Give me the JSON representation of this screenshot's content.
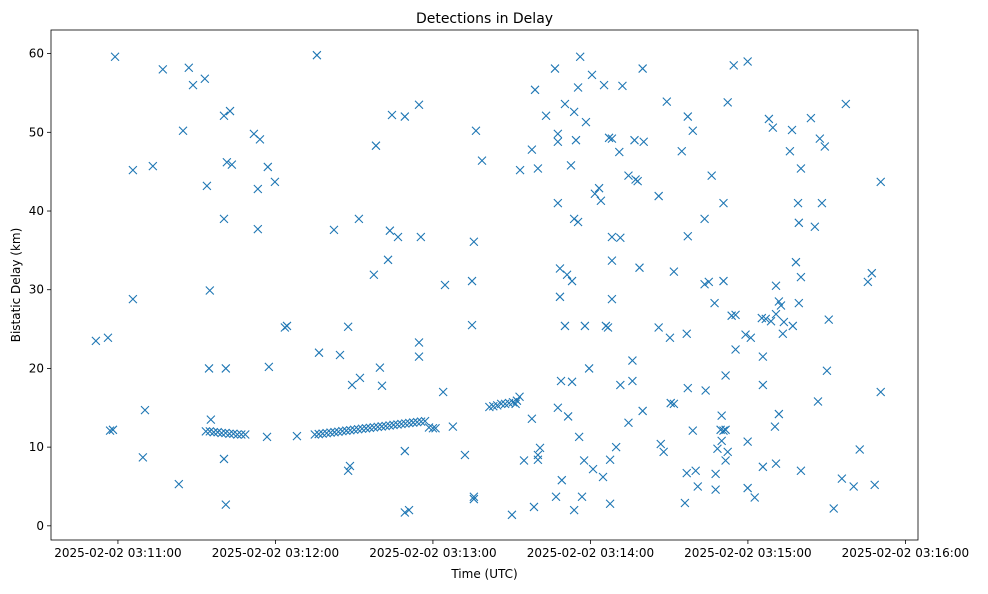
{
  "chart_data": {
    "type": "scatter",
    "title": "Detections in Delay",
    "xlabel": "Time (UTC)",
    "ylabel": "Bistatic Delay (km)",
    "x_unit": "seconds after 2025-02-02 03:11:00",
    "xlim": [
      -25.5,
      304.8
    ],
    "ylim": [
      -1.8,
      63.0
    ],
    "xticks": [
      {
        "value": 0,
        "label": "2025-02-02 03:11:00"
      },
      {
        "value": 60,
        "label": "2025-02-02 03:12:00"
      },
      {
        "value": 120,
        "label": "2025-02-02 03:13:00"
      },
      {
        "value": 180,
        "label": "2025-02-02 03:14:00"
      },
      {
        "value": 240,
        "label": "2025-02-02 03:15:00"
      },
      {
        "value": 300,
        "label": "2025-02-02 03:16:00"
      }
    ],
    "yticks": [
      {
        "value": 0,
        "label": "0"
      },
      {
        "value": 10,
        "label": "10"
      },
      {
        "value": 20,
        "label": "20"
      },
      {
        "value": 30,
        "label": "30"
      },
      {
        "value": 40,
        "label": "40"
      },
      {
        "value": 50,
        "label": "50"
      },
      {
        "value": 60,
        "label": "60"
      }
    ],
    "grid": false,
    "marker": "x",
    "color": "#1f77b4",
    "points": [
      [
        -8.4,
        23.5
      ],
      [
        -3.8,
        23.9
      ],
      [
        -3.0,
        12.1
      ],
      [
        -1.9,
        12.2
      ],
      [
        -1.1,
        59.6
      ],
      [
        5.7,
        45.2
      ],
      [
        5.7,
        28.8
      ],
      [
        9.5,
        8.7
      ],
      [
        10.3,
        14.7
      ],
      [
        13.3,
        45.7
      ],
      [
        17.1,
        58.0
      ],
      [
        23.2,
        5.3
      ],
      [
        24.8,
        50.2
      ],
      [
        27.0,
        58.2
      ],
      [
        28.6,
        56.0
      ],
      [
        33.1,
        56.8
      ],
      [
        33.9,
        43.2
      ],
      [
        35.0,
        29.9
      ],
      [
        34.7,
        20.0
      ],
      [
        35.4,
        13.5
      ],
      [
        33.5,
        12.0
      ],
      [
        35,
        12.0
      ],
      [
        36.5,
        11.9
      ],
      [
        38,
        11.9
      ],
      [
        39.5,
        11.8
      ],
      [
        41,
        11.8
      ],
      [
        42.5,
        11.7
      ],
      [
        44,
        11.7
      ],
      [
        45.5,
        11.6
      ],
      [
        47,
        11.6
      ],
      [
        48.5,
        11.6
      ],
      [
        40.4,
        52.1
      ],
      [
        42.7,
        52.7
      ],
      [
        40.4,
        39.0
      ],
      [
        41.5,
        46.2
      ],
      [
        43.4,
        45.9
      ],
      [
        41.1,
        20.0
      ],
      [
        40.4,
        8.5
      ],
      [
        41.1,
        2.7
      ],
      [
        51.8,
        49.8
      ],
      [
        54.1,
        49.1
      ],
      [
        53.3,
        42.8
      ],
      [
        53.3,
        37.7
      ],
      [
        57.1,
        45.6
      ],
      [
        59.8,
        43.7
      ],
      [
        57.5,
        20.2
      ],
      [
        56.8,
        11.3
      ],
      [
        63.6,
        25.2
      ],
      [
        64.4,
        25.4
      ],
      [
        68.2,
        11.4
      ],
      [
        75.8,
        59.8
      ],
      [
        76.6,
        22.0
      ],
      [
        82.3,
        37.6
      ],
      [
        84.6,
        21.7
      ],
      [
        87.7,
        25.3
      ],
      [
        87.7,
        7.0
      ],
      [
        88.4,
        7.6
      ],
      [
        89.2,
        17.9
      ],
      [
        91.8,
        39.0
      ],
      [
        92.2,
        18.8
      ],
      [
        97.5,
        31.9
      ],
      [
        98.3,
        48.3
      ],
      [
        99.8,
        20.1
      ],
      [
        100.6,
        17.8
      ],
      [
        102.9,
        33.8
      ],
      [
        103.6,
        37.5
      ],
      [
        104.4,
        52.2
      ],
      [
        106.7,
        36.7
      ],
      [
        109.3,
        52.0
      ],
      [
        109.3,
        9.5
      ],
      [
        109.3,
        1.7
      ],
      [
        110.9,
        2.0
      ],
      [
        114.7,
        53.5
      ],
      [
        115.4,
        36.7
      ],
      [
        114.7,
        23.3
      ],
      [
        114.7,
        21.5
      ],
      [
        75,
        11.6
      ],
      [
        76.5,
        11.66
      ],
      [
        78,
        11.72
      ],
      [
        79.5,
        11.78
      ],
      [
        81,
        11.84
      ],
      [
        82.5,
        11.9
      ],
      [
        84,
        11.96
      ],
      [
        85.5,
        12.03
      ],
      [
        87,
        12.09
      ],
      [
        88.5,
        12.15
      ],
      [
        90,
        12.21
      ],
      [
        91.5,
        12.27
      ],
      [
        93,
        12.33
      ],
      [
        94.5,
        12.39
      ],
      [
        96,
        12.45
      ],
      [
        97.5,
        12.51
      ],
      [
        99,
        12.57
      ],
      [
        100.5,
        12.63
      ],
      [
        102,
        12.69
      ],
      [
        103.5,
        12.75
      ],
      [
        105,
        12.82
      ],
      [
        106.5,
        12.88
      ],
      [
        108,
        12.94
      ],
      [
        109.5,
        13.0
      ],
      [
        111,
        13.06
      ],
      [
        112.5,
        13.12
      ],
      [
        114,
        13.18
      ],
      [
        115.5,
        13.24
      ],
      [
        117,
        13.3
      ],
      [
        118.5,
        12.5
      ],
      [
        120,
        12.4
      ],
      [
        121,
        12.4
      ],
      [
        124.6,
        30.6
      ],
      [
        123.9,
        17.0
      ],
      [
        127.6,
        12.6
      ],
      [
        132.2,
        9.0
      ],
      [
        134.9,
        31.1
      ],
      [
        135.6,
        36.1
      ],
      [
        136.4,
        50.2
      ],
      [
        138.7,
        46.4
      ],
      [
        134.9,
        25.5
      ],
      [
        135.6,
        3.7
      ],
      [
        135.6,
        3.4
      ],
      [
        141.5,
        15.1
      ],
      [
        143,
        15.2
      ],
      [
        144.5,
        15.3
      ],
      [
        146,
        15.5
      ],
      [
        147.5,
        15.5
      ],
      [
        149,
        15.6
      ],
      [
        150.5,
        15.7
      ],
      [
        151.5,
        15.5
      ],
      [
        152,
        15.9
      ],
      [
        153,
        16.4
      ],
      [
        150.1,
        1.4
      ],
      [
        153.2,
        45.2
      ],
      [
        154.7,
        8.3
      ],
      [
        157.7,
        13.6
      ],
      [
        158.5,
        2.4
      ],
      [
        160.0,
        8.4
      ],
      [
        160.8,
        9.9
      ],
      [
        160.0,
        9.0
      ],
      [
        158.9,
        55.4
      ],
      [
        157.7,
        47.8
      ],
      [
        160.0,
        45.4
      ],
      [
        163.1,
        52.1
      ],
      [
        166.5,
        58.1
      ],
      [
        167.6,
        49.8
      ],
      [
        167.6,
        48.8
      ],
      [
        167.6,
        41.0
      ],
      [
        168.4,
        32.7
      ],
      [
        168.4,
        29.1
      ],
      [
        170.3,
        53.6
      ],
      [
        171.1,
        31.9
      ],
      [
        172.6,
        45.8
      ],
      [
        173.0,
        31.1
      ],
      [
        170.3,
        25.4
      ],
      [
        167.6,
        15.0
      ],
      [
        168.8,
        18.4
      ],
      [
        171.5,
        13.9
      ],
      [
        173.0,
        18.3
      ],
      [
        166.9,
        3.7
      ],
      [
        169.1,
        5.8
      ],
      [
        173.8,
        2.0
      ],
      [
        173.8,
        39.0
      ],
      [
        175.3,
        38.6
      ],
      [
        173.8,
        52.6
      ],
      [
        174.5,
        49.0
      ],
      [
        175.3,
        55.7
      ],
      [
        176.1,
        59.6
      ],
      [
        175.7,
        11.3
      ],
      [
        177.6,
        8.3
      ],
      [
        176.8,
        3.7
      ],
      [
        178.3,
        51.3
      ],
      [
        177.9,
        25.4
      ],
      [
        179.5,
        20.0
      ],
      [
        180.6,
        57.3
      ],
      [
        181.7,
        42.2
      ],
      [
        183.3,
        42.9
      ],
      [
        184.0,
        41.3
      ],
      [
        181.0,
        7.2
      ],
      [
        184.8,
        6.2
      ],
      [
        185.2,
        56.0
      ],
      [
        185.9,
        25.4
      ],
      [
        186.7,
        25.2
      ],
      [
        187.1,
        49.3
      ],
      [
        188.2,
        49.2
      ],
      [
        188.2,
        36.7
      ],
      [
        188.2,
        33.7
      ],
      [
        188.2,
        28.8
      ],
      [
        187.5,
        8.4
      ],
      [
        187.5,
        2.8
      ],
      [
        189.8,
        10.0
      ],
      [
        191.0,
        47.5
      ],
      [
        191.4,
        36.6
      ],
      [
        192.2,
        55.9
      ],
      [
        191.4,
        17.9
      ],
      [
        194.5,
        44.5
      ],
      [
        196.0,
        18.4
      ],
      [
        196.0,
        21.0
      ],
      [
        194.5,
        13.1
      ],
      [
        196.8,
        49.0
      ],
      [
        197.2,
        44.0
      ],
      [
        198.0,
        43.8
      ],
      [
        198.7,
        32.8
      ],
      [
        199.9,
        58.1
      ],
      [
        200.3,
        48.8
      ],
      [
        199.9,
        14.6
      ],
      [
        206.0,
        41.9
      ],
      [
        206.0,
        25.2
      ],
      [
        206.8,
        10.4
      ],
      [
        207.9,
        9.4
      ],
      [
        209.1,
        53.9
      ],
      [
        210.3,
        23.9
      ],
      [
        210.6,
        15.6
      ],
      [
        211.8,
        15.5
      ],
      [
        211.8,
        32.3
      ],
      [
        214.8,
        47.6
      ],
      [
        216.0,
        2.9
      ],
      [
        216.7,
        6.7
      ],
      [
        216.7,
        24.4
      ],
      [
        217.1,
        52.0
      ],
      [
        217.1,
        36.8
      ],
      [
        217.1,
        17.5
      ],
      [
        219.0,
        12.1
      ],
      [
        219.0,
        50.2
      ],
      [
        220.1,
        7.0
      ],
      [
        220.9,
        5.0
      ],
      [
        223.5,
        39.0
      ],
      [
        223.9,
        17.2
      ],
      [
        223.5,
        30.7
      ],
      [
        225.1,
        31.0
      ],
      [
        226.2,
        44.5
      ],
      [
        227.3,
        28.3
      ],
      [
        227.7,
        6.6
      ],
      [
        227.7,
        4.6
      ],
      [
        228.4,
        9.8
      ],
      [
        230.0,
        14.0
      ],
      [
        229.6,
        12.2
      ],
      [
        230.7,
        12.1
      ],
      [
        231.5,
        12.2
      ],
      [
        230.7,
        31.1
      ],
      [
        230.7,
        41.0
      ],
      [
        230.0,
        10.8
      ],
      [
        231.5,
        8.3
      ],
      [
        231.5,
        19.1
      ],
      [
        232.3,
        53.8
      ],
      [
        232.3,
        9.4
      ],
      [
        233.8,
        26.7
      ],
      [
        234.6,
        58.5
      ],
      [
        235.3,
        26.8
      ],
      [
        235.3,
        22.4
      ],
      [
        239.1,
        24.3
      ],
      [
        239.9,
        59.0
      ],
      [
        239.9,
        10.7
      ],
      [
        239.9,
        4.8
      ],
      [
        241.1,
        23.9
      ],
      [
        242.6,
        3.6
      ],
      [
        245.3,
        26.4
      ],
      [
        245.7,
        21.5
      ],
      [
        245.7,
        17.9
      ],
      [
        245.7,
        7.5
      ],
      [
        246.8,
        26.3
      ],
      [
        248.0,
        51.7
      ],
      [
        248.8,
        26.0
      ],
      [
        249.5,
        50.6
      ],
      [
        250.3,
        12.6
      ],
      [
        250.7,
        26.9
      ],
      [
        250.7,
        30.5
      ],
      [
        250.7,
        7.9
      ],
      [
        251.8,
        14.2
      ],
      [
        251.8,
        28.5
      ],
      [
        252.6,
        28.0
      ],
      [
        253.3,
        24.4
      ],
      [
        253.7,
        25.9
      ],
      [
        256.0,
        47.6
      ],
      [
        256.8,
        50.3
      ],
      [
        257.1,
        25.4
      ],
      [
        258.3,
        33.5
      ],
      [
        259.1,
        41.0
      ],
      [
        259.4,
        38.5
      ],
      [
        259.4,
        28.3
      ],
      [
        260.2,
        31.6
      ],
      [
        260.2,
        45.4
      ],
      [
        260.2,
        7.0
      ],
      [
        264.0,
        51.8
      ],
      [
        265.5,
        38.0
      ],
      [
        266.7,
        15.8
      ],
      [
        267.4,
        49.2
      ],
      [
        268.2,
        41.0
      ],
      [
        269.3,
        48.2
      ],
      [
        270.1,
        19.7
      ],
      [
        270.8,
        26.2
      ],
      [
        272.7,
        2.2
      ],
      [
        275.8,
        6.0
      ],
      [
        277.3,
        53.6
      ],
      [
        280.3,
        5.0
      ],
      [
        282.6,
        9.7
      ],
      [
        285.7,
        31.0
      ],
      [
        287.2,
        32.1
      ],
      [
        288.3,
        5.2
      ],
      [
        290.6,
        43.7
      ],
      [
        290.6,
        17.0
      ]
    ]
  }
}
